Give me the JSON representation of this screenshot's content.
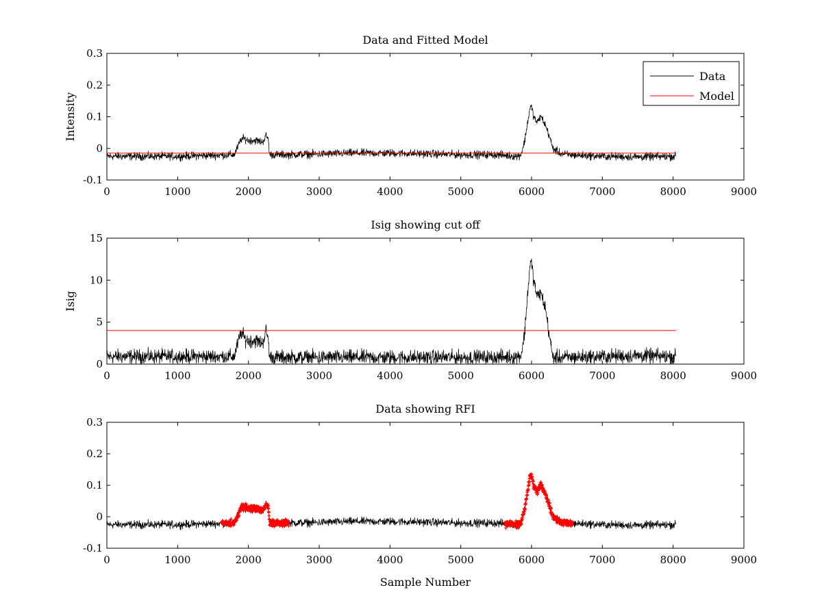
{
  "chart_data": [
    {
      "type": "line",
      "title": "Data and Fitted Model",
      "xlabel": "",
      "ylabel": "Intensity",
      "xlim": [
        0,
        9000
      ],
      "ylim": [
        -0.1,
        0.3
      ],
      "xticks": [
        0,
        1000,
        2000,
        3000,
        4000,
        5000,
        6000,
        7000,
        8000,
        9000
      ],
      "yticks": [
        -0.1,
        0,
        0.1,
        0.2,
        0.3
      ],
      "xtick_labels": [
        "0",
        "1000",
        "2000",
        "3000",
        "4000",
        "5000",
        "6000",
        "7000",
        "8000",
        "9000"
      ],
      "ytick_labels": [
        "-0.1",
        "0",
        "0.1",
        "0.2",
        "0.3"
      ],
      "legend_position": "top-right",
      "series": [
        {
          "name": "Data",
          "color": "#000000",
          "x": [
            0,
            500,
            1000,
            1500,
            1800,
            1850,
            1900,
            1950,
            2000,
            2100,
            2200,
            2250,
            2280,
            2300,
            2500,
            3000,
            3500,
            4000,
            4500,
            5000,
            5500,
            5800,
            5850,
            5900,
            5950,
            5980,
            6000,
            6030,
            6080,
            6120,
            6150,
            6200,
            6250,
            6300,
            6400,
            6500,
            7000,
            7500,
            8000,
            8040
          ],
          "y": [
            -0.025,
            -0.025,
            -0.025,
            -0.022,
            -0.02,
            0.005,
            0.03,
            0.03,
            0.025,
            0.025,
            0.02,
            0.04,
            0.03,
            -0.02,
            -0.02,
            -0.018,
            -0.015,
            -0.015,
            -0.017,
            -0.02,
            -0.02,
            -0.025,
            -0.02,
            0.02,
            0.09,
            0.13,
            0.13,
            0.1,
            0.08,
            0.1,
            0.095,
            0.07,
            0.04,
            0.0,
            -0.015,
            -0.02,
            -0.025,
            -0.027,
            -0.025,
            -0.025
          ]
        },
        {
          "name": "Model",
          "color": "#ff0000",
          "x": [
            0,
            8040
          ],
          "y": [
            -0.015,
            -0.015
          ]
        }
      ]
    },
    {
      "type": "line",
      "title": "Isig showing cut off",
      "xlabel": "",
      "ylabel": "Isig",
      "xlim": [
        0,
        9000
      ],
      "ylim": [
        0,
        15
      ],
      "xticks": [
        0,
        1000,
        2000,
        3000,
        4000,
        5000,
        6000,
        7000,
        8000,
        9000
      ],
      "yticks": [
        0,
        5,
        10,
        15
      ],
      "xtick_labels": [
        "0",
        "1000",
        "2000",
        "3000",
        "4000",
        "5000",
        "6000",
        "7000",
        "8000",
        "9000"
      ],
      "ytick_labels": [
        "0",
        "5",
        "10",
        "15"
      ],
      "series": [
        {
          "color": "#000000",
          "x": [
            0,
            500,
            1000,
            1500,
            1800,
            1850,
            1900,
            1950,
            2000,
            2100,
            2200,
            2250,
            2280,
            2300,
            2500,
            3000,
            3500,
            4000,
            4500,
            5000,
            5500,
            5800,
            5850,
            5900,
            5950,
            5980,
            6000,
            6030,
            6080,
            6120,
            6150,
            6200,
            6250,
            6300,
            6400,
            6500,
            7000,
            7500,
            8000,
            8040
          ],
          "y": [
            0.9,
            0.9,
            0.9,
            0.9,
            0.9,
            2.5,
            3.8,
            3.0,
            2.8,
            2.8,
            2.5,
            4.0,
            3.0,
            0.8,
            0.8,
            0.8,
            0.8,
            0.8,
            0.8,
            0.8,
            0.8,
            0.9,
            1.0,
            3.5,
            9.0,
            12.0,
            12.0,
            10.0,
            8.0,
            8.5,
            8.0,
            6.5,
            3.5,
            0.8,
            0.8,
            0.8,
            0.9,
            1.0,
            0.9,
            0.9
          ]
        },
        {
          "color": "#ff0000",
          "x": [
            0,
            8040
          ],
          "y": [
            4,
            4
          ]
        }
      ]
    },
    {
      "type": "line",
      "title": "Data showing RFI",
      "xlabel": "Sample Number",
      "ylabel": "",
      "xlim": [
        0,
        9000
      ],
      "ylim": [
        -0.1,
        0.3
      ],
      "xticks": [
        0,
        1000,
        2000,
        3000,
        4000,
        5000,
        6000,
        7000,
        8000,
        9000
      ],
      "yticks": [
        -0.1,
        0,
        0.1,
        0.2,
        0.3
      ],
      "xtick_labels": [
        "0",
        "1000",
        "2000",
        "3000",
        "4000",
        "5000",
        "6000",
        "7000",
        "8000",
        "9000"
      ],
      "ytick_labels": [
        "-0.1",
        "0",
        "0.1",
        "0.2",
        "0.3"
      ],
      "series": [
        {
          "color": "#000000",
          "x": [
            0,
            500,
            1000,
            1500,
            1800,
            1850,
            1900,
            1950,
            2000,
            2100,
            2200,
            2250,
            2280,
            2300,
            2500,
            3000,
            3500,
            4000,
            4500,
            5000,
            5500,
            5800,
            5850,
            5900,
            5950,
            5980,
            6000,
            6030,
            6080,
            6120,
            6150,
            6200,
            6250,
            6300,
            6400,
            6500,
            7000,
            7500,
            8000,
            8040
          ],
          "y": [
            -0.025,
            -0.025,
            -0.025,
            -0.022,
            -0.02,
            0.005,
            0.03,
            0.03,
            0.025,
            0.025,
            0.02,
            0.04,
            0.03,
            -0.02,
            -0.02,
            -0.018,
            -0.015,
            -0.015,
            -0.017,
            -0.02,
            -0.02,
            -0.025,
            -0.02,
            0.02,
            0.09,
            0.13,
            0.13,
            0.1,
            0.08,
            0.1,
            0.095,
            0.07,
            0.04,
            0.0,
            -0.015,
            -0.02,
            -0.025,
            -0.027,
            -0.025,
            -0.025
          ]
        }
      ],
      "flagged_ranges": [
        [
          1620,
          2570
        ],
        [
          5620,
          6580
        ]
      ],
      "flag_color": "#ff0000"
    }
  ]
}
